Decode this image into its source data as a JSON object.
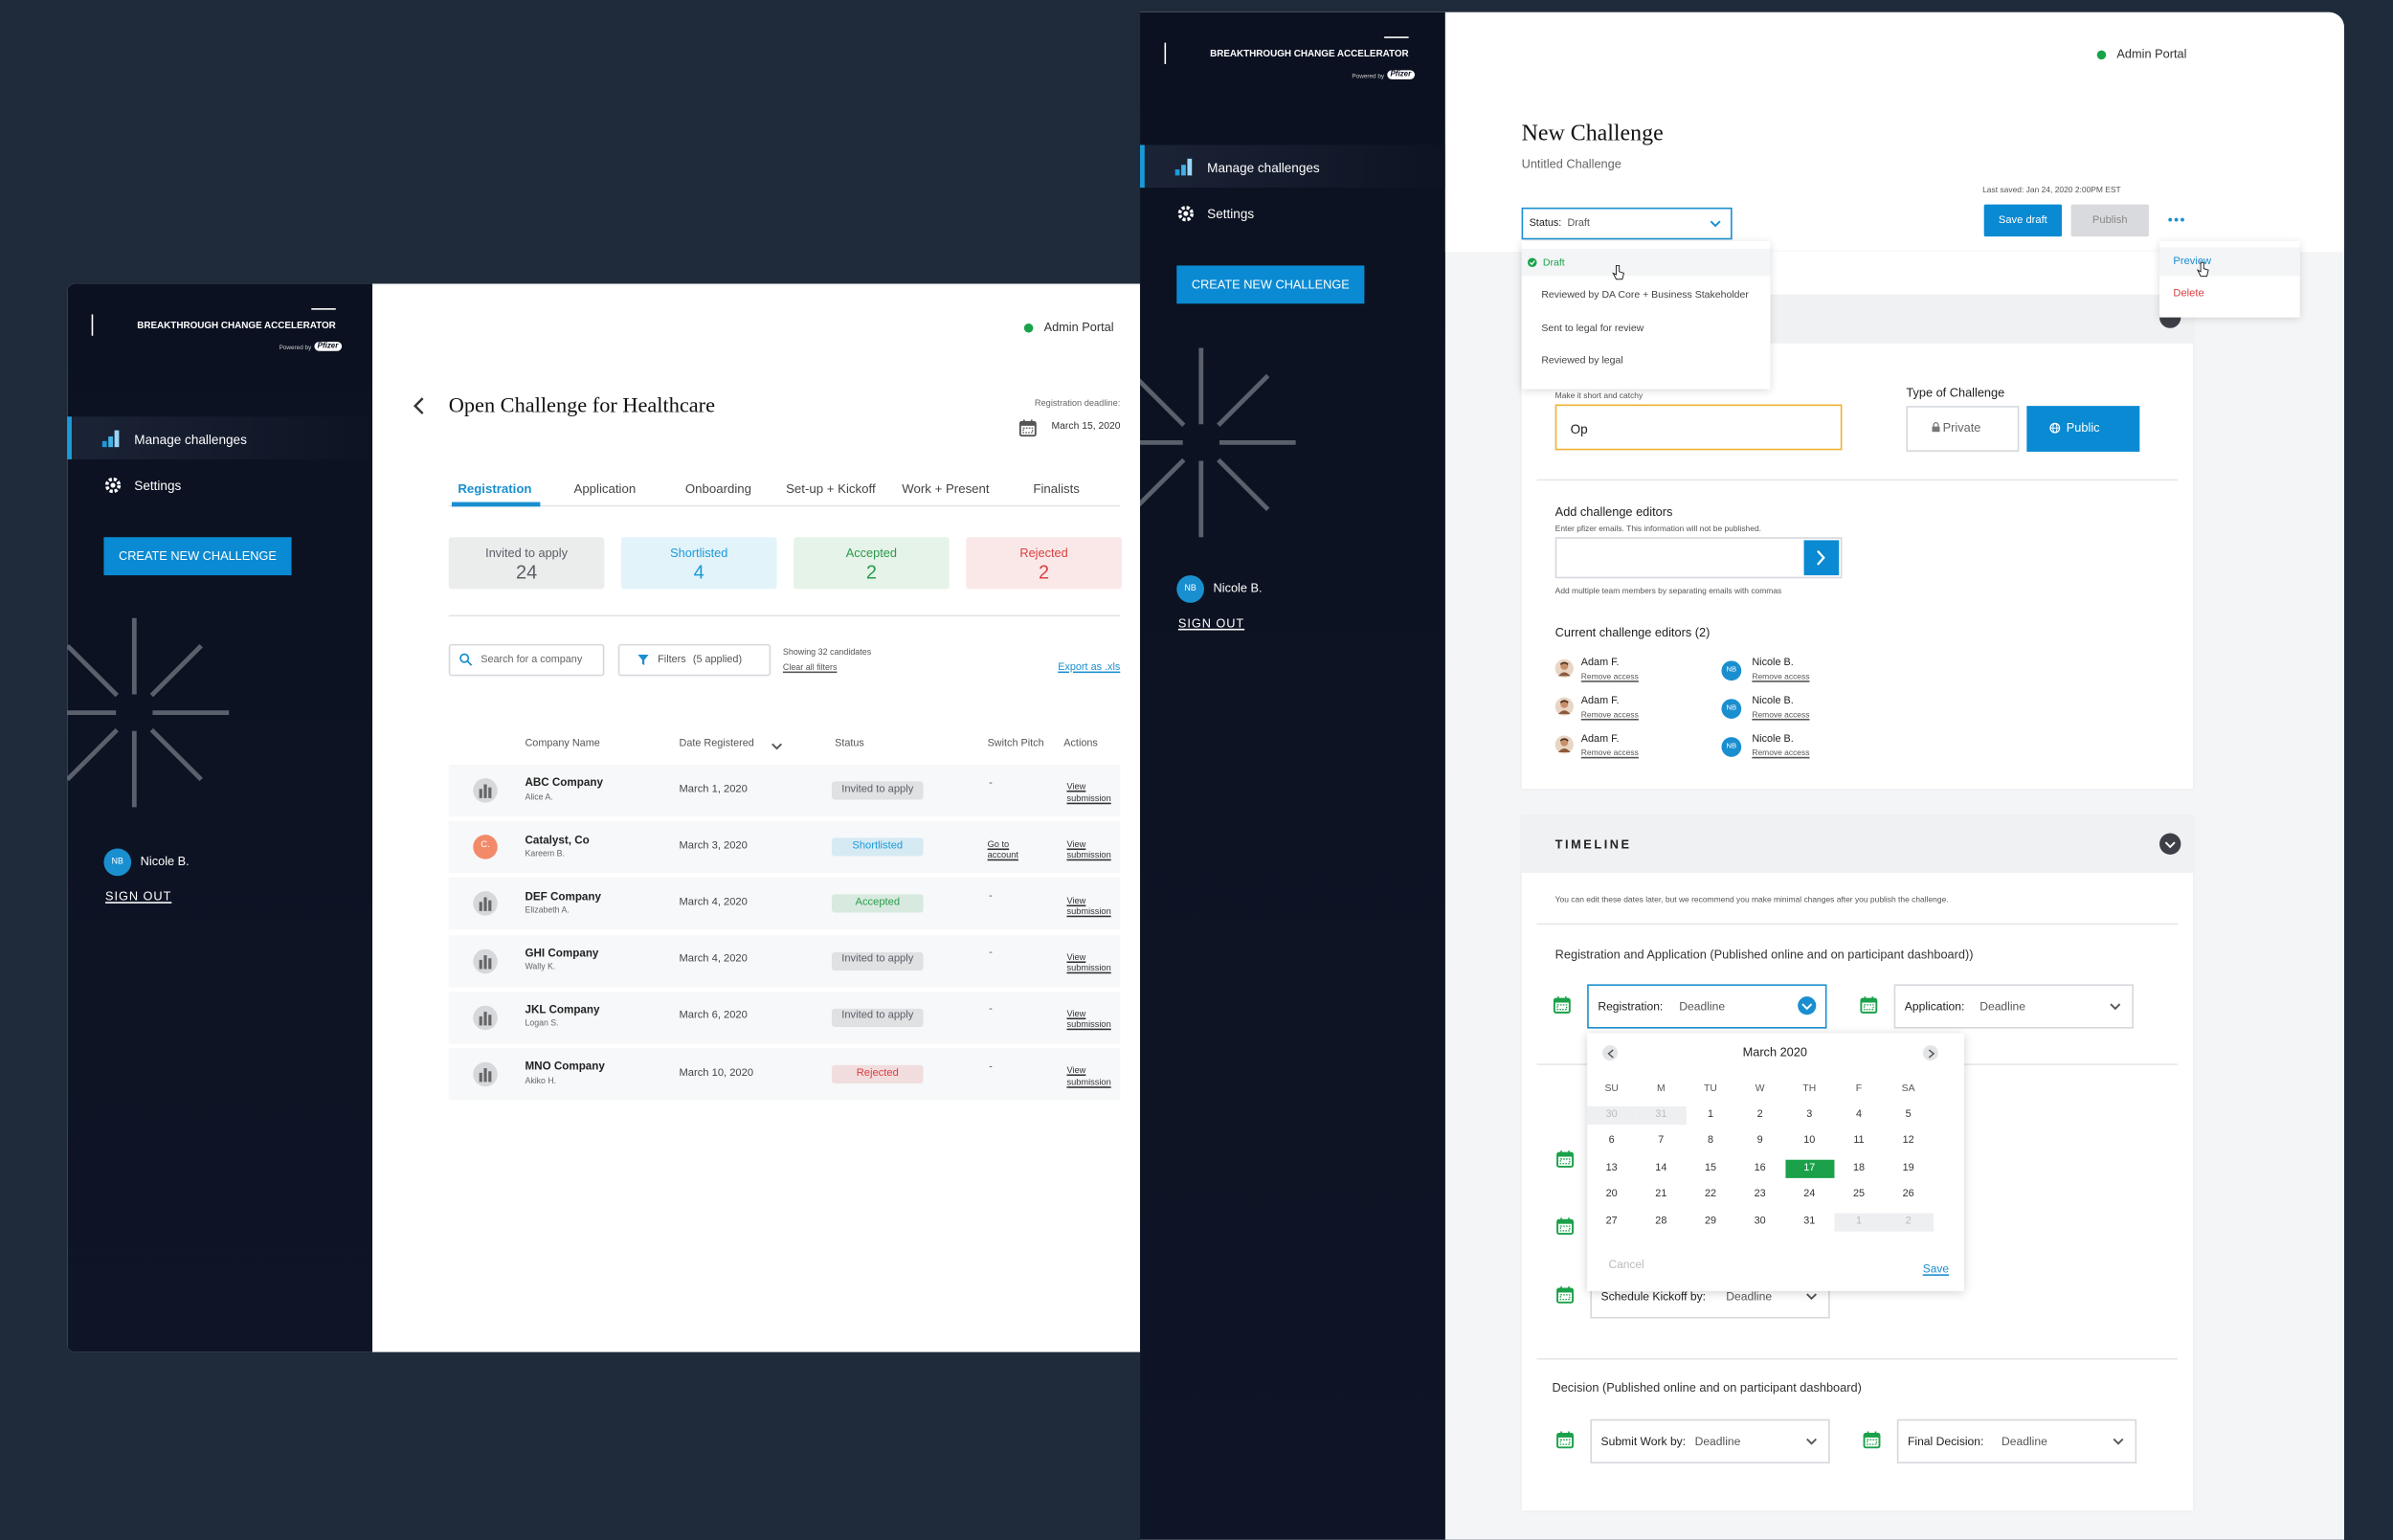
{
  "left_window": {
    "brand": "BREAKTHROUGH CHANGE ACCELERATOR",
    "powered_by": "Powered by",
    "logo": "Pfizer",
    "admin_portal": "Admin Portal",
    "nav": [
      "Manage challenges",
      "Settings"
    ],
    "create_button": "CREATE NEW CHALLENGE",
    "user": {
      "initials": "NB",
      "name": "Nicole B."
    },
    "sign_out": "SIGN OUT",
    "page_title": "Open Challenge for Healthcare",
    "deadline_label": "Registration deadline:",
    "deadline": "March 15, 2020",
    "tabs": [
      "Registration",
      "Application",
      "Onboarding",
      "Set-up + Kickoff",
      "Work + Present",
      "Finalists"
    ],
    "stats": [
      {
        "label": "Invited to apply",
        "value": 24,
        "color": "#5a5f66"
      },
      {
        "label": "Shortlisted",
        "value": 4,
        "color": "#1a9bd7"
      },
      {
        "label": "Accepted",
        "value": 2,
        "color": "#2a9a4a"
      },
      {
        "label": "Rejected",
        "value": 2,
        "color": "#d84040"
      }
    ],
    "search_placeholder": "Search for a company",
    "filters": "Filters",
    "filters_applied": "(5 applied)",
    "showing": "Showing 32 candidates",
    "clear_filters": "Clear all filters",
    "export": "Export as .xls",
    "table": {
      "columns": [
        "Company Name",
        "Date Registered",
        "Status",
        "Switch Pitch",
        "Actions"
      ],
      "rows": [
        {
          "company": "ABC Company",
          "contact": "Alice A.",
          "date": "March 1, 2020",
          "status": "Invited to apply",
          "switch_pitch": "-",
          "action": "View submission"
        },
        {
          "company": "Catalyst, Co",
          "contact": "Kareem B.",
          "avatar": "C.",
          "date": "March 3, 2020",
          "status": "Shortlisted",
          "switch_pitch": "Go to account",
          "action": "View submission"
        },
        {
          "company": "DEF Company",
          "contact": "Elizabeth A.",
          "date": "March 4, 2020",
          "status": "Accepted",
          "switch_pitch": "-",
          "action": "View submission"
        },
        {
          "company": "GHI Company",
          "contact": "Wally K.",
          "date": "March 4, 2020",
          "status": "Invited to apply",
          "switch_pitch": "-",
          "action": "View submission"
        },
        {
          "company": "JKL Company",
          "contact": "Logan S.",
          "date": "March 6, 2020",
          "status": "Invited to apply",
          "switch_pitch": "-",
          "action": "View submission"
        },
        {
          "company": "MNO Company",
          "contact": "Akiko H.",
          "date": "March 10, 2020",
          "status": "Rejected",
          "switch_pitch": "-",
          "action": "View submission"
        }
      ]
    }
  },
  "right_window": {
    "brand": "BREAKTHROUGH CHANGE ACCELERATOR",
    "powered_by": "Powered by",
    "logo": "Pfizer",
    "admin_portal": "Admin Portal",
    "nav": [
      "Manage challenges",
      "Settings"
    ],
    "create_button": "CREATE NEW CHALLENGE",
    "user": {
      "initials": "NB",
      "name": "Nicole B."
    },
    "sign_out": "SIGN OUT",
    "page_title": "New Challenge",
    "subtitle": "Untitled Challenge",
    "last_saved": "Last saved: Jan 24, 2020 2:00PM EST",
    "save_button": "Save draft",
    "publish_button": "Publish",
    "more_menu": [
      "Preview",
      "Delete"
    ],
    "status_label": "Status:",
    "status_options": [
      "Draft",
      "Reviewed by DA Core + Business Stakeholder",
      "Sent to legal for review",
      "Reviewed by legal"
    ],
    "name_hint": "Make it short and catchy",
    "name_input": "Op",
    "type_label": "Type of Challenge",
    "types": [
      "Private",
      "Public"
    ],
    "editors_label": "Add challenge editors",
    "editors_hint": "Enter pfizer emails. This information will not be published.",
    "editors_note": "Add multiple team members by separating emails with commas",
    "current_editors": "Current challenge editors (2)",
    "editors": [
      {
        "name": "Adam F.",
        "action": "Remove access"
      },
      {
        "name": "Adam F.",
        "action": "Remove access"
      },
      {
        "name": "Adam F.",
        "action": "Remove access"
      },
      {
        "name": "Nicole B.",
        "action": "Remove access"
      },
      {
        "name": "Nicole B.",
        "action": "Remove access"
      },
      {
        "name": "Nicole B.",
        "action": "Remove access"
      }
    ],
    "timeline": {
      "title": "TIMELINE",
      "note": "You can edit these dates later, but we recommend you make minimal changes after you publish the challenge.",
      "section1": "Registration and Application (Published online and on participant dashboard))",
      "registration": {
        "label": "Registration:",
        "placeholder": "Deadline"
      },
      "application": {
        "label": "Application:",
        "placeholder": "Deadline"
      },
      "kickoff": {
        "label": "Schedule Kickoff by:",
        "placeholder": "Deadline"
      },
      "section2": "Decision (Published online and on participant dashboard)",
      "submit_work": {
        "label": "Submit Work by:",
        "placeholder": "Deadline"
      },
      "final_decision": {
        "label": "Final Decision:",
        "placeholder": "Deadline"
      }
    },
    "calendar": {
      "month": "March 2020",
      "weekdays": [
        "SU",
        "M",
        "TU",
        "W",
        "TH",
        "F",
        "SA"
      ],
      "days_prev_month": [
        30,
        31
      ],
      "days": [
        1,
        2,
        3,
        4,
        5,
        6,
        7,
        8,
        9,
        10,
        11,
        12,
        13,
        14,
        15,
        16,
        17,
        18,
        19,
        20,
        21,
        22,
        23,
        24,
        25,
        26,
        27,
        28,
        29,
        30,
        31
      ],
      "days_next_month": [
        1,
        2
      ],
      "selected_day": 17,
      "cancel": "Cancel",
      "save": "Save"
    }
  }
}
